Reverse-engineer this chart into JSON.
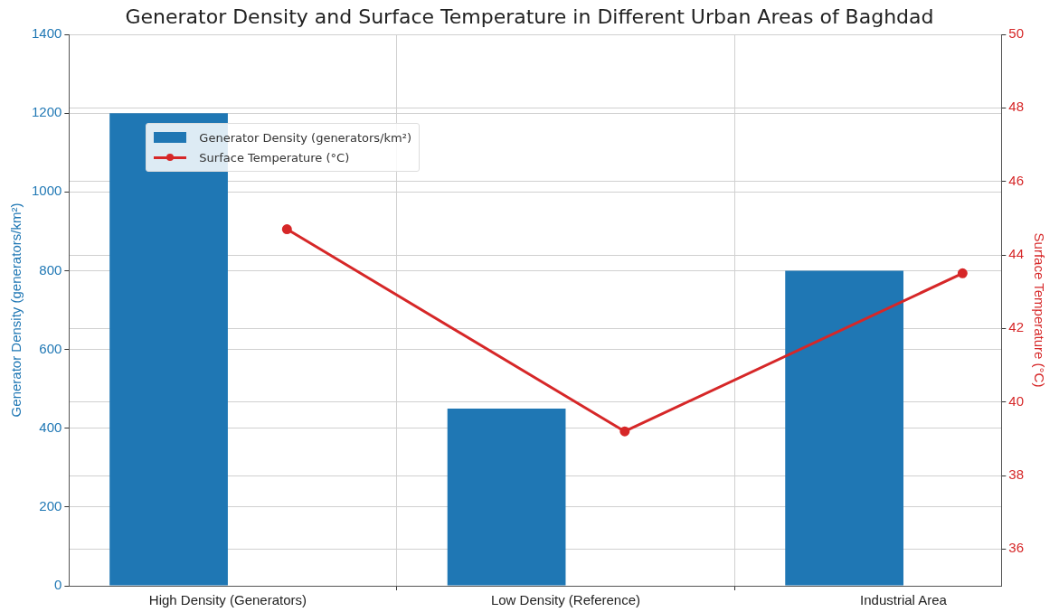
{
  "chart_data": {
    "type": "bar",
    "title": "Generator Density and Surface Temperature in Different Urban Areas of Baghdad",
    "categories": [
      "High Density (Generators)",
      "Low Density (Reference)",
      "Industrial Area"
    ],
    "series": [
      {
        "name": "Generator Density (generators/km²)",
        "color": "#1f77b4",
        "values": [
          1200,
          450,
          800
        ]
      },
      {
        "name": "Surface Temperature (°C)",
        "type": "line",
        "axis": "y2",
        "color": "#d62728",
        "values": [
          44.7,
          39.2,
          43.5
        ]
      }
    ],
    "ylabel": "Generator Density (generators/km²)",
    "y2label": "Surface Temperature (°C)",
    "ylim": [
      0,
      1400
    ],
    "yticks": [
      0,
      200,
      400,
      600,
      800,
      1000,
      1200,
      1400
    ],
    "y2lim": [
      35,
      50
    ],
    "y2ticks": [
      36,
      38,
      40,
      42,
      44,
      46,
      48,
      50
    ],
    "grid": true,
    "legend": "top left",
    "marker": "circle",
    "line_style": "solid"
  }
}
